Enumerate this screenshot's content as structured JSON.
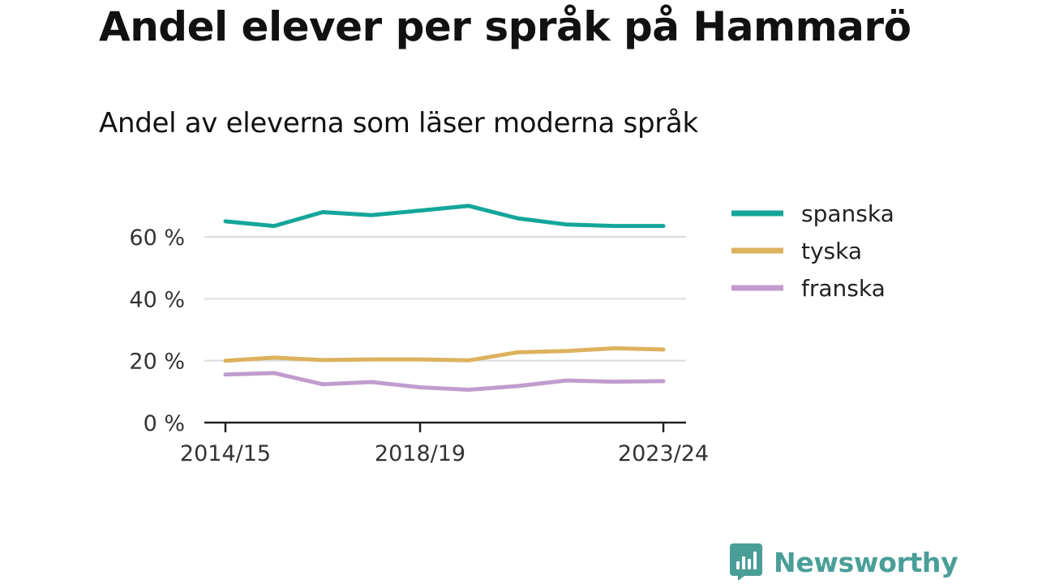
{
  "title": "Andel elever per språk på Hammarö",
  "subtitle": "Andel av eleverna som läser moderna språk",
  "brand": {
    "name": "Newsworthy",
    "color": "#4a9e98"
  },
  "chart_data": {
    "type": "line",
    "x": [
      2014,
      2015,
      2016,
      2017,
      2018,
      2019,
      2020,
      2021,
      2022,
      2023
    ],
    "x_ticks": [
      {
        "x": 2014,
        "label": "2014/15"
      },
      {
        "x": 2018,
        "label": "2018/19"
      },
      {
        "x": 2023,
        "label": "2023/24"
      }
    ],
    "y_ticks": [
      {
        "value": 0,
        "label": "0 %"
      },
      {
        "value": 20,
        "label": "20 %"
      },
      {
        "value": 40,
        "label": "40 %"
      },
      {
        "value": 60,
        "label": "60 %"
      }
    ],
    "ylim": [
      0,
      70
    ],
    "grid": "horizontal",
    "legend_position": "right",
    "series": [
      {
        "name": "spanska",
        "color": "#14a69a",
        "values": [
          65,
          63.5,
          68,
          67,
          68.5,
          70,
          66,
          64,
          63.5,
          63.5
        ]
      },
      {
        "name": "tyska",
        "color": "#dcb25e",
        "values": [
          20,
          21,
          20.2,
          20.4,
          20.4,
          20.1,
          22.7,
          23.1,
          24,
          23.6
        ]
      },
      {
        "name": "franska",
        "color": "#c19ccf",
        "values": [
          15.5,
          16,
          12.4,
          13.1,
          11.4,
          10.6,
          11.8,
          13.6,
          13.2,
          13.4
        ]
      }
    ]
  }
}
